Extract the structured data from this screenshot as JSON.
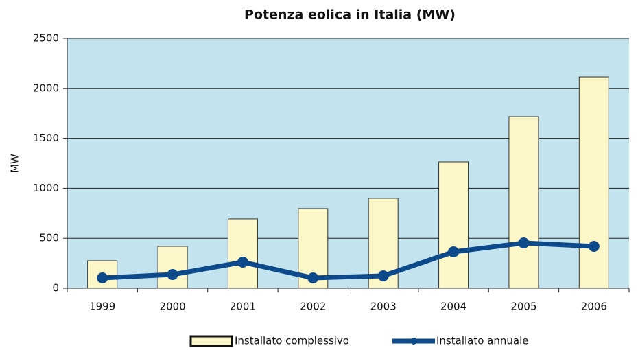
{
  "chart_data": {
    "type": "bar",
    "title": "Potenza eolica in Italia (MW)",
    "y_label": "MW",
    "categories": [
      "1999",
      "2000",
      "2001",
      "2002",
      "2003",
      "2004",
      "2005",
      "2006"
    ],
    "series": [
      {
        "name": "Installato complessivo",
        "type": "bar",
        "color": "#fbf7c8",
        "values": [
          275,
          419,
          694,
          797,
          900,
          1264,
          1717,
          2115
        ]
      },
      {
        "name": "Installato annuale",
        "type": "line",
        "color": "#0d4a8c",
        "values": [
          103,
          137,
          261,
          103,
          124,
          364,
          453,
          419
        ]
      }
    ],
    "ylim": [
      0,
      2500
    ],
    "yticks": [
      0,
      500,
      1000,
      1500,
      2000,
      2500
    ],
    "grid": true,
    "legend": "bottom"
  }
}
